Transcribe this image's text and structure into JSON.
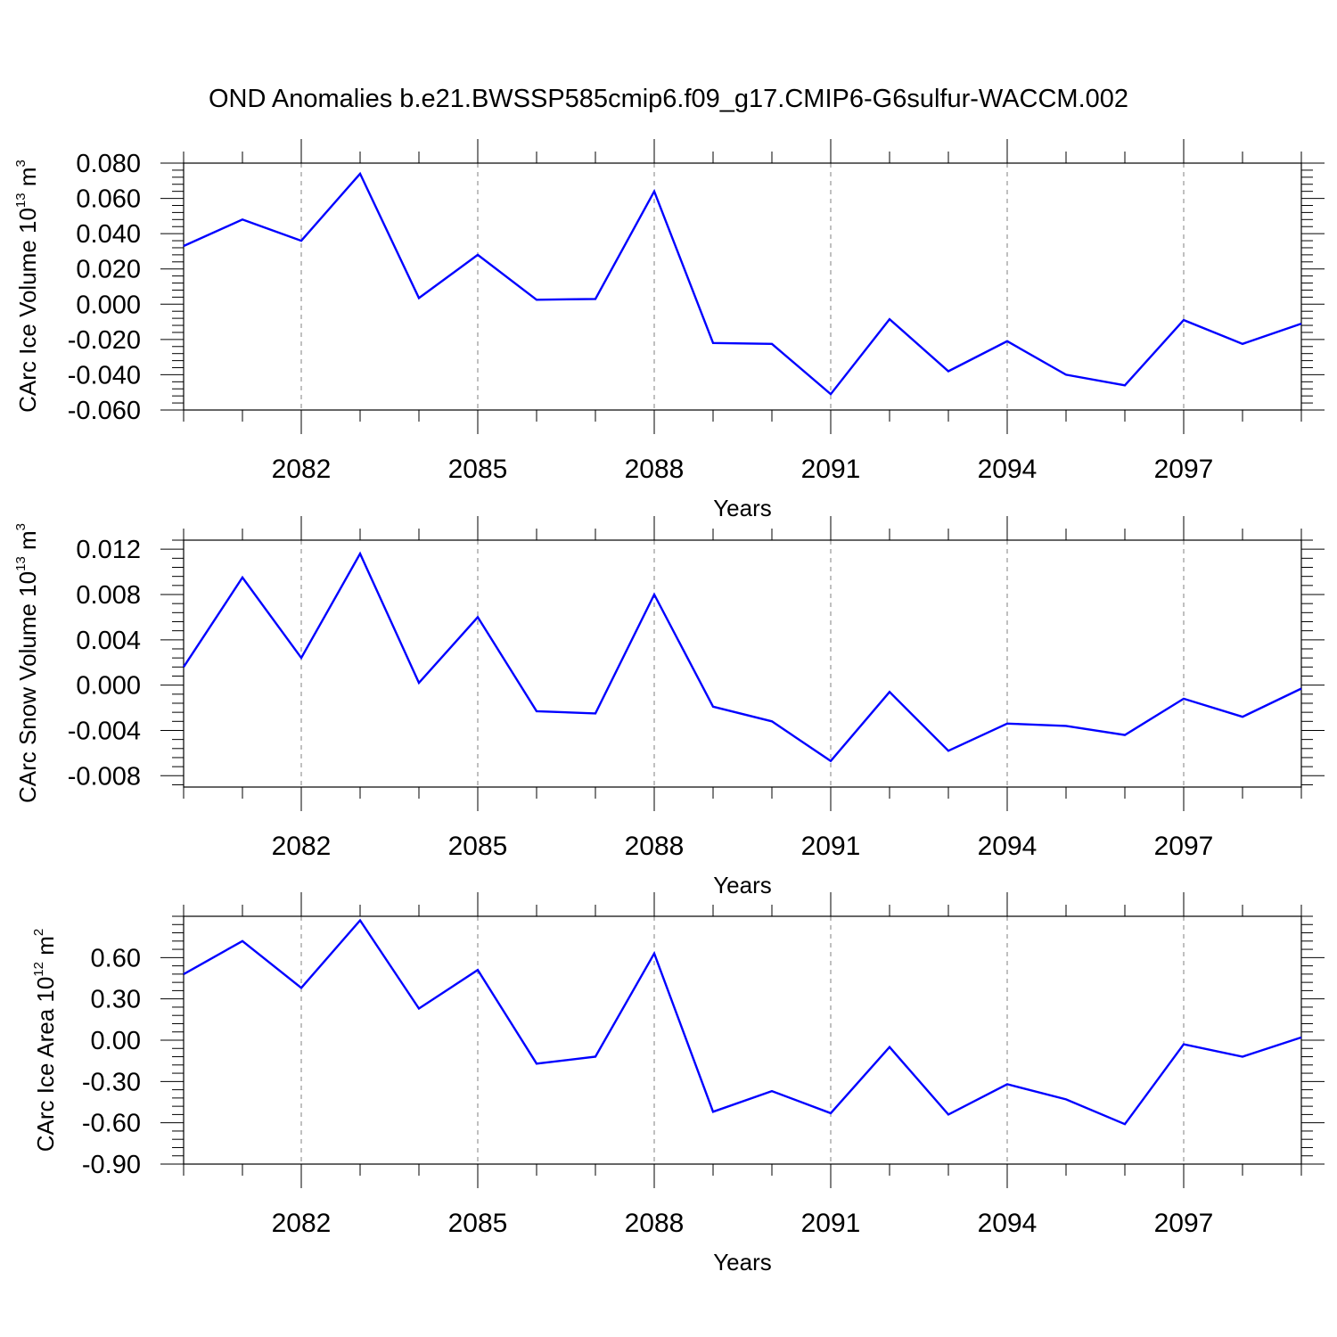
{
  "title": "OND Anomalies b.e21.BWSSP585cmip6.f09_g17.CMIP6-G6sulfur-WACCM.002",
  "colors": {
    "line": "#0000ff",
    "axis": "#000000",
    "grid": "#808080"
  },
  "chart_data": [
    {
      "type": "line",
      "xlabel": "Years",
      "ylabel": {
        "prefix": "CArc Ice Volume 10",
        "exponent": "13",
        "unit": " m",
        "unit_exponent": "3"
      },
      "xlim": [
        2080,
        2099
      ],
      "ylim": [
        -0.06,
        0.08
      ],
      "grid": "vertical-dashed",
      "x_ticks": [
        2082,
        2085,
        2088,
        2091,
        2094,
        2097
      ],
      "y_ticks": [
        "0.080",
        "0.060",
        "0.040",
        "0.020",
        "0.000",
        "-0.020",
        "-0.040",
        "-0.060"
      ],
      "y_tick_values": [
        0.08,
        0.06,
        0.04,
        0.02,
        0.0,
        -0.02,
        -0.04,
        -0.06
      ],
      "x": [
        2080,
        2081,
        2082,
        2083,
        2084,
        2085,
        2086,
        2087,
        2088,
        2089,
        2090,
        2091,
        2092,
        2093,
        2094,
        2095,
        2096,
        2097,
        2098,
        2099
      ],
      "values": [
        0.033,
        0.048,
        0.036,
        0.074,
        0.0035,
        0.028,
        0.0025,
        0.003,
        0.064,
        -0.022,
        -0.0225,
        -0.051,
        -0.0085,
        -0.038,
        -0.021,
        -0.04,
        -0.046,
        -0.009,
        -0.0225,
        -0.011
      ]
    },
    {
      "type": "line",
      "xlabel": "Years",
      "ylabel": {
        "prefix": "CArc Snow Volume 10",
        "exponent": "13",
        "unit": " m",
        "unit_exponent": "3"
      },
      "xlim": [
        2080,
        2099
      ],
      "ylim": [
        -0.009,
        0.0128
      ],
      "grid": "vertical-dashed",
      "x_ticks": [
        2082,
        2085,
        2088,
        2091,
        2094,
        2097
      ],
      "y_ticks": [
        "0.012",
        "0.008",
        "0.004",
        "0.000",
        "-0.004",
        "-0.008"
      ],
      "y_tick_values": [
        0.012,
        0.008,
        0.004,
        0.0,
        -0.004,
        -0.008
      ],
      "x": [
        2080,
        2081,
        2082,
        2083,
        2084,
        2085,
        2086,
        2087,
        2088,
        2089,
        2090,
        2091,
        2092,
        2093,
        2094,
        2095,
        2096,
        2097,
        2098,
        2099
      ],
      "values": [
        0.0016,
        0.0095,
        0.0024,
        0.0116,
        0.0002,
        0.006,
        -0.0023,
        -0.0025,
        0.008,
        -0.0019,
        -0.0032,
        -0.0067,
        -0.0006,
        -0.0058,
        -0.0034,
        -0.0036,
        -0.0044,
        -0.0012,
        -0.0028,
        -0.0003
      ]
    },
    {
      "type": "line",
      "xlabel": "Years",
      "ylabel": {
        "prefix": "CArc Ice Area 10",
        "exponent": "12",
        "unit": " m",
        "unit_exponent": "2"
      },
      "xlim": [
        2080,
        2099
      ],
      "ylim": [
        -0.9,
        0.9
      ],
      "grid": "vertical-dashed",
      "x_ticks": [
        2082,
        2085,
        2088,
        2091,
        2094,
        2097
      ],
      "y_ticks": [
        "0.60",
        "0.30",
        "0.00",
        "-0.30",
        "-0.60",
        "-0.90"
      ],
      "y_tick_values": [
        0.6,
        0.3,
        0.0,
        -0.3,
        -0.6,
        -0.9
      ],
      "x": [
        2080,
        2081,
        2082,
        2083,
        2084,
        2085,
        2086,
        2087,
        2088,
        2089,
        2090,
        2091,
        2092,
        2093,
        2094,
        2095,
        2096,
        2097,
        2098,
        2099
      ],
      "values": [
        0.48,
        0.72,
        0.38,
        0.87,
        0.23,
        0.51,
        -0.17,
        -0.12,
        0.63,
        -0.52,
        -0.37,
        -0.53,
        -0.05,
        -0.54,
        -0.32,
        -0.43,
        -0.61,
        -0.03,
        -0.12,
        0.02
      ]
    }
  ]
}
